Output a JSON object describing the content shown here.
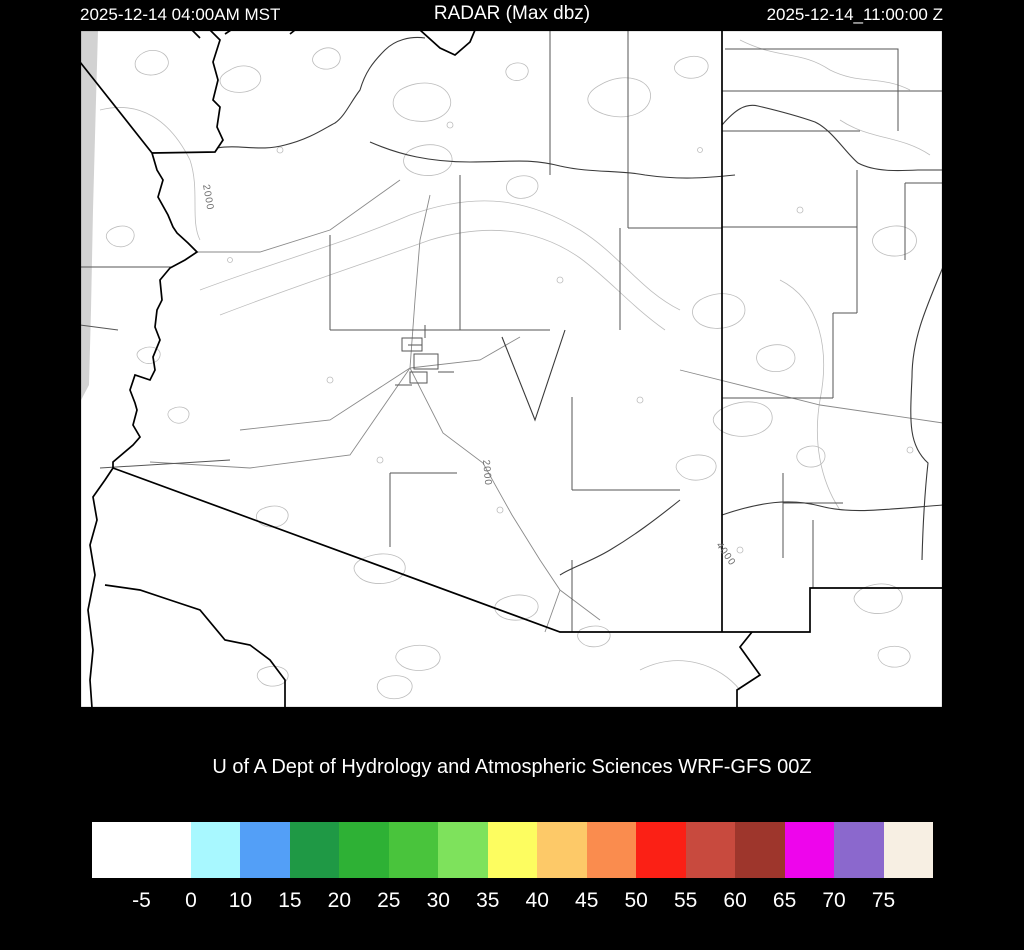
{
  "header": {
    "left_timestamp": "2025-12-14 04:00AM MST",
    "title": "RADAR (Max dbz)",
    "right_timestamp": "2025-12-14_11:00:00 Z"
  },
  "caption": "U of A Dept of Hydrology and Atmospheric Sciences WRF-GFS 00Z",
  "map": {
    "region": "Arizona and surrounding states (WRF model domain)",
    "radar_echoes": "none (field blank / below 0 dbz everywhere)",
    "labels": [
      "2000",
      "2000",
      "4000"
    ],
    "nodata_strip_color": "#d2d2d2"
  },
  "colorbar": {
    "quantity": "Max dbz",
    "tick_labels": [
      "-5",
      "0",
      "10",
      "15",
      "20",
      "25",
      "30",
      "35",
      "40",
      "45",
      "50",
      "55",
      "60",
      "65",
      "70",
      "75"
    ],
    "colors": [
      "#ffffff",
      "#ffffff",
      "#a8f8ff",
      "#539ff7",
      "#1f9945",
      "#2eb135",
      "#49c43c",
      "#7ee25c",
      "#fdfd60",
      "#fdc968",
      "#fa8c4e",
      "#fb2015",
      "#c84a3e",
      "#9e362c",
      "#ee05ec",
      "#8b68cd",
      "#f7efe3"
    ]
  },
  "chart_data": {
    "type": "heatmap",
    "title": "RADAR (Max dbz)",
    "colorscale_thresholds": [
      -5,
      0,
      10,
      15,
      20,
      25,
      30,
      35,
      40,
      45,
      50,
      55,
      60,
      65,
      70,
      75
    ],
    "values_shown": "all map area white (no reflectivity >= -5 dbz)",
    "legend_position": "bottom"
  }
}
